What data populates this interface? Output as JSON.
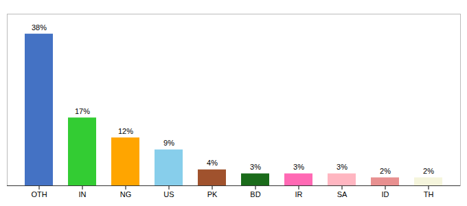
{
  "chart_data": {
    "type": "bar",
    "categories": [
      "OTH",
      "IN",
      "NG",
      "US",
      "PK",
      "BD",
      "IR",
      "SA",
      "ID",
      "TH"
    ],
    "values": [
      38,
      17,
      12,
      9,
      4,
      3,
      3,
      3,
      2,
      2
    ],
    "value_labels": [
      "38%",
      "17%",
      "12%",
      "9%",
      "4%",
      "3%",
      "3%",
      "3%",
      "2%",
      "2%"
    ],
    "colors": [
      "#4472C4",
      "#33CC33",
      "#FFA500",
      "#87CEEB",
      "#A0522D",
      "#1A6B1A",
      "#FF69B4",
      "#FFB6C1",
      "#E89090",
      "#F5F5DC"
    ],
    "ylim": [
      0,
      43
    ],
    "data_labels": true,
    "tick_labels": "x"
  }
}
